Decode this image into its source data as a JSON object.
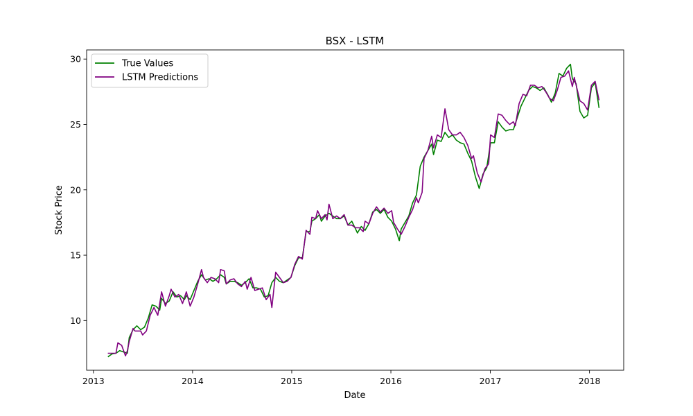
{
  "chart_data": {
    "type": "line",
    "title": "BSX - LSTM",
    "xlabel": "Date",
    "ylabel": "Stock Price",
    "xlim": [
      "2012-12-07",
      "2018-05-07"
    ],
    "ylim": [
      6.2,
      30.7
    ],
    "xticks": [
      "2013-01-01",
      "2014-01-01",
      "2015-01-01",
      "2016-01-01",
      "2017-01-01",
      "2018-01-01"
    ],
    "xtick_labels": [
      "2013",
      "2014",
      "2015",
      "2016",
      "2017",
      "2018"
    ],
    "yticks": [
      10,
      15,
      20,
      25,
      30
    ],
    "ytick_labels": [
      "10",
      "15",
      "20",
      "25",
      "30"
    ],
    "grid": false,
    "legend": "top-left",
    "series": [
      {
        "name": "True Values",
        "color": "#008000",
        "points": [
          [
            "2013-02-25",
            7.25
          ],
          [
            "2013-03-11",
            7.45
          ],
          [
            "2013-03-25",
            7.5
          ],
          [
            "2013-04-08",
            7.7
          ],
          [
            "2013-04-22",
            7.6
          ],
          [
            "2013-05-06",
            7.5
          ],
          [
            "2013-05-13",
            8.7
          ],
          [
            "2013-05-27",
            9.3
          ],
          [
            "2013-06-10",
            9.6
          ],
          [
            "2013-06-24",
            9.3
          ],
          [
            "2013-07-08",
            9.5
          ],
          [
            "2013-07-22",
            10.2
          ],
          [
            "2013-08-05",
            11.2
          ],
          [
            "2013-08-19",
            11.1
          ],
          [
            "2013-09-02",
            10.8
          ],
          [
            "2013-09-09",
            11.7
          ],
          [
            "2013-09-23",
            11.3
          ],
          [
            "2013-10-07",
            11.5
          ],
          [
            "2013-10-21",
            12.2
          ],
          [
            "2013-11-04",
            11.8
          ],
          [
            "2013-11-18",
            11.9
          ],
          [
            "2013-12-02",
            11.6
          ],
          [
            "2013-12-09",
            11.9
          ],
          [
            "2013-12-23",
            11.6
          ],
          [
            "2014-01-06",
            12.3
          ],
          [
            "2014-01-20",
            13.0
          ],
          [
            "2014-02-03",
            13.5
          ],
          [
            "2014-02-17",
            13.1
          ],
          [
            "2014-03-03",
            13.2
          ],
          [
            "2014-03-17",
            13.0
          ],
          [
            "2014-03-31",
            13.2
          ],
          [
            "2014-04-14",
            13.5
          ],
          [
            "2014-04-28",
            13.3
          ],
          [
            "2014-05-05",
            12.8
          ],
          [
            "2014-05-19",
            13.0
          ],
          [
            "2014-06-02",
            13.0
          ],
          [
            "2014-06-16",
            12.9
          ],
          [
            "2014-06-30",
            12.7
          ],
          [
            "2014-07-14",
            12.9
          ],
          [
            "2014-07-28",
            13.2
          ],
          [
            "2014-08-11",
            12.5
          ],
          [
            "2014-08-25",
            12.5
          ],
          [
            "2014-09-08",
            12.4
          ],
          [
            "2014-09-22",
            11.8
          ],
          [
            "2014-10-06",
            11.9
          ],
          [
            "2014-10-20",
            12.9
          ],
          [
            "2014-11-03",
            13.3
          ],
          [
            "2014-11-17",
            13.0
          ],
          [
            "2014-12-01",
            12.9
          ],
          [
            "2014-12-15",
            13.1
          ],
          [
            "2014-12-29",
            13.3
          ],
          [
            "2015-01-12",
            14.2
          ],
          [
            "2015-01-26",
            14.8
          ],
          [
            "2015-02-09",
            14.8
          ],
          [
            "2015-02-23",
            16.8
          ],
          [
            "2015-03-09",
            16.8
          ],
          [
            "2015-03-16",
            17.6
          ],
          [
            "2015-03-30",
            17.8
          ],
          [
            "2015-04-13",
            18.1
          ],
          [
            "2015-04-20",
            17.6
          ],
          [
            "2015-05-04",
            18.0
          ],
          [
            "2015-05-18",
            18.2
          ],
          [
            "2015-06-01",
            18.0
          ],
          [
            "2015-06-15",
            17.8
          ],
          [
            "2015-06-29",
            17.8
          ],
          [
            "2015-07-13",
            18.0
          ],
          [
            "2015-07-27",
            17.3
          ],
          [
            "2015-08-10",
            17.6
          ],
          [
            "2015-08-24",
            17.0
          ],
          [
            "2015-08-31",
            16.7
          ],
          [
            "2015-09-14",
            17.2
          ],
          [
            "2015-09-28",
            16.9
          ],
          [
            "2015-10-12",
            17.4
          ],
          [
            "2015-10-26",
            18.3
          ],
          [
            "2015-11-09",
            18.5
          ],
          [
            "2015-11-23",
            18.2
          ],
          [
            "2015-12-07",
            18.5
          ],
          [
            "2015-12-21",
            17.9
          ],
          [
            "2016-01-04",
            17.6
          ],
          [
            "2016-01-18",
            17.0
          ],
          [
            "2016-02-01",
            16.1
          ],
          [
            "2016-02-08",
            17.0
          ],
          [
            "2016-02-22",
            17.5
          ],
          [
            "2016-03-07",
            18.0
          ],
          [
            "2016-03-21",
            19.0
          ],
          [
            "2016-04-04",
            19.6
          ],
          [
            "2016-04-18",
            21.8
          ],
          [
            "2016-05-02",
            22.5
          ],
          [
            "2016-05-16",
            23.0
          ],
          [
            "2016-05-30",
            23.5
          ],
          [
            "2016-06-06",
            22.7
          ],
          [
            "2016-06-20",
            23.8
          ],
          [
            "2016-07-04",
            23.7
          ],
          [
            "2016-07-18",
            24.4
          ],
          [
            "2016-08-01",
            24.0
          ],
          [
            "2016-08-15",
            24.2
          ],
          [
            "2016-08-29",
            23.8
          ],
          [
            "2016-09-12",
            23.6
          ],
          [
            "2016-09-26",
            23.5
          ],
          [
            "2016-10-10",
            22.8
          ],
          [
            "2016-10-24",
            22.2
          ],
          [
            "2016-11-07",
            21.0
          ],
          [
            "2016-11-21",
            20.1
          ],
          [
            "2016-12-05",
            21.2
          ],
          [
            "2016-12-19",
            21.7
          ],
          [
            "2017-01-02",
            23.6
          ],
          [
            "2017-01-16",
            23.6
          ],
          [
            "2017-01-30",
            25.2
          ],
          [
            "2017-02-13",
            24.8
          ],
          [
            "2017-02-27",
            24.5
          ],
          [
            "2017-03-13",
            24.6
          ],
          [
            "2017-03-27",
            24.6
          ],
          [
            "2017-04-10",
            25.5
          ],
          [
            "2017-04-24",
            26.4
          ],
          [
            "2017-05-08",
            27.0
          ],
          [
            "2017-05-22",
            27.6
          ],
          [
            "2017-06-05",
            27.9
          ],
          [
            "2017-06-19",
            27.8
          ],
          [
            "2017-07-03",
            27.6
          ],
          [
            "2017-07-17",
            27.8
          ],
          [
            "2017-07-31",
            27.3
          ],
          [
            "2017-08-14",
            26.7
          ],
          [
            "2017-08-28",
            27.4
          ],
          [
            "2017-09-11",
            28.9
          ],
          [
            "2017-09-25",
            28.7
          ],
          [
            "2017-10-09",
            29.3
          ],
          [
            "2017-10-23",
            29.6
          ],
          [
            "2017-10-30",
            28.5
          ],
          [
            "2017-11-13",
            28.1
          ],
          [
            "2017-11-27",
            26.0
          ],
          [
            "2017-12-11",
            25.5
          ],
          [
            "2017-12-25",
            25.7
          ],
          [
            "2018-01-08",
            27.8
          ],
          [
            "2018-01-22",
            28.2
          ],
          [
            "2018-02-05",
            26.3
          ]
        ]
      },
      {
        "name": "LSTM Predictions",
        "color": "#800080",
        "points": [
          [
            "2013-02-25",
            7.5
          ],
          [
            "2013-03-11",
            7.5
          ],
          [
            "2013-03-25",
            7.5
          ],
          [
            "2013-04-01",
            8.3
          ],
          [
            "2013-04-15",
            8.1
          ],
          [
            "2013-04-29",
            7.3
          ],
          [
            "2013-05-06",
            7.7
          ],
          [
            "2013-05-13",
            8.4
          ],
          [
            "2013-05-27",
            9.4
          ],
          [
            "2013-06-03",
            9.2
          ],
          [
            "2013-06-24",
            9.2
          ],
          [
            "2013-07-01",
            8.9
          ],
          [
            "2013-07-15",
            9.2
          ],
          [
            "2013-07-29",
            10.4
          ],
          [
            "2013-08-12",
            11.0
          ],
          [
            "2013-08-26",
            10.4
          ],
          [
            "2013-09-09",
            12.2
          ],
          [
            "2013-09-23",
            11.1
          ],
          [
            "2013-10-07",
            11.9
          ],
          [
            "2013-10-14",
            12.4
          ],
          [
            "2013-10-28",
            11.8
          ],
          [
            "2013-11-11",
            12.0
          ],
          [
            "2013-11-25",
            11.3
          ],
          [
            "2013-12-09",
            12.2
          ],
          [
            "2013-12-23",
            11.1
          ],
          [
            "2014-01-06",
            11.8
          ],
          [
            "2014-01-20",
            12.8
          ],
          [
            "2014-02-03",
            13.9
          ],
          [
            "2014-02-10",
            13.3
          ],
          [
            "2014-02-24",
            12.9
          ],
          [
            "2014-03-10",
            13.3
          ],
          [
            "2014-03-24",
            13.2
          ],
          [
            "2014-04-07",
            12.9
          ],
          [
            "2014-04-14",
            13.9
          ],
          [
            "2014-04-28",
            13.8
          ],
          [
            "2014-05-05",
            12.8
          ],
          [
            "2014-05-19",
            13.1
          ],
          [
            "2014-06-02",
            13.2
          ],
          [
            "2014-06-16",
            12.8
          ],
          [
            "2014-06-30",
            12.6
          ],
          [
            "2014-07-14",
            13.0
          ],
          [
            "2014-07-21",
            12.4
          ],
          [
            "2014-08-04",
            13.3
          ],
          [
            "2014-08-18",
            12.3
          ],
          [
            "2014-09-01",
            12.4
          ],
          [
            "2014-09-15",
            12.5
          ],
          [
            "2014-09-29",
            11.6
          ],
          [
            "2014-10-13",
            12.0
          ],
          [
            "2014-10-20",
            11.0
          ],
          [
            "2014-11-03",
            13.7
          ],
          [
            "2014-11-17",
            13.3
          ],
          [
            "2014-12-01",
            12.9
          ],
          [
            "2014-12-15",
            13.0
          ],
          [
            "2014-12-29",
            13.3
          ],
          [
            "2015-01-12",
            14.3
          ],
          [
            "2015-01-26",
            14.9
          ],
          [
            "2015-02-09",
            14.7
          ],
          [
            "2015-02-23",
            16.9
          ],
          [
            "2015-03-09",
            16.6
          ],
          [
            "2015-03-16",
            17.9
          ],
          [
            "2015-03-30",
            17.8
          ],
          [
            "2015-04-06",
            18.4
          ],
          [
            "2015-04-20",
            17.8
          ],
          [
            "2015-05-04",
            18.1
          ],
          [
            "2015-05-11",
            17.7
          ],
          [
            "2015-05-18",
            18.9
          ],
          [
            "2015-06-01",
            17.8
          ],
          [
            "2015-06-15",
            18.0
          ],
          [
            "2015-06-29",
            17.8
          ],
          [
            "2015-07-13",
            18.1
          ],
          [
            "2015-07-27",
            17.3
          ],
          [
            "2015-08-10",
            17.3
          ],
          [
            "2015-08-24",
            17.1
          ],
          [
            "2015-09-07",
            17.1
          ],
          [
            "2015-09-21",
            16.8
          ],
          [
            "2015-09-28",
            17.6
          ],
          [
            "2015-10-12",
            17.4
          ],
          [
            "2015-10-26",
            18.2
          ],
          [
            "2015-11-09",
            18.7
          ],
          [
            "2015-11-23",
            18.3
          ],
          [
            "2015-12-07",
            18.6
          ],
          [
            "2015-12-21",
            18.2
          ],
          [
            "2016-01-04",
            18.4
          ],
          [
            "2016-01-11",
            17.5
          ],
          [
            "2016-01-25",
            17.0
          ],
          [
            "2016-02-08",
            16.6
          ],
          [
            "2016-02-22",
            17.2
          ],
          [
            "2016-03-07",
            17.9
          ],
          [
            "2016-03-21",
            18.5
          ],
          [
            "2016-04-04",
            19.4
          ],
          [
            "2016-04-11",
            19.0
          ],
          [
            "2016-04-25",
            19.8
          ],
          [
            "2016-05-02",
            22.4
          ],
          [
            "2016-05-16",
            23.0
          ],
          [
            "2016-05-30",
            24.1
          ],
          [
            "2016-06-06",
            23.2
          ],
          [
            "2016-06-20",
            24.2
          ],
          [
            "2016-07-04",
            24.0
          ],
          [
            "2016-07-18",
            26.2
          ],
          [
            "2016-08-01",
            24.6
          ],
          [
            "2016-08-15",
            24.2
          ],
          [
            "2016-08-29",
            24.2
          ],
          [
            "2016-09-12",
            24.4
          ],
          [
            "2016-09-26",
            24.0
          ],
          [
            "2016-10-10",
            23.4
          ],
          [
            "2016-10-24",
            22.4
          ],
          [
            "2016-10-31",
            22.6
          ],
          [
            "2016-11-14",
            21.3
          ],
          [
            "2016-11-28",
            20.6
          ],
          [
            "2016-12-12",
            21.6
          ],
          [
            "2016-12-26",
            22.0
          ],
          [
            "2017-01-02",
            24.2
          ],
          [
            "2017-01-16",
            24.0
          ],
          [
            "2017-01-30",
            25.8
          ],
          [
            "2017-02-13",
            25.7
          ],
          [
            "2017-02-27",
            25.3
          ],
          [
            "2017-03-13",
            25.0
          ],
          [
            "2017-03-27",
            25.2
          ],
          [
            "2017-04-03",
            24.9
          ],
          [
            "2017-04-17",
            26.6
          ],
          [
            "2017-05-01",
            27.3
          ],
          [
            "2017-05-15",
            27.2
          ],
          [
            "2017-05-29",
            28.0
          ],
          [
            "2017-06-12",
            28.0
          ],
          [
            "2017-06-26",
            27.8
          ],
          [
            "2017-07-10",
            27.9
          ],
          [
            "2017-07-24",
            27.5
          ],
          [
            "2017-08-07",
            27.0
          ],
          [
            "2017-08-21",
            26.8
          ],
          [
            "2017-09-04",
            27.6
          ],
          [
            "2017-09-18",
            28.6
          ],
          [
            "2017-10-02",
            28.7
          ],
          [
            "2017-10-16",
            29.1
          ],
          [
            "2017-10-30",
            27.9
          ],
          [
            "2017-11-06",
            28.6
          ],
          [
            "2017-11-13",
            28.0
          ],
          [
            "2017-11-27",
            26.8
          ],
          [
            "2017-12-11",
            26.6
          ],
          [
            "2017-12-25",
            26.1
          ],
          [
            "2018-01-08",
            28.0
          ],
          [
            "2018-01-22",
            28.3
          ],
          [
            "2018-02-05",
            26.9
          ]
        ]
      }
    ]
  }
}
